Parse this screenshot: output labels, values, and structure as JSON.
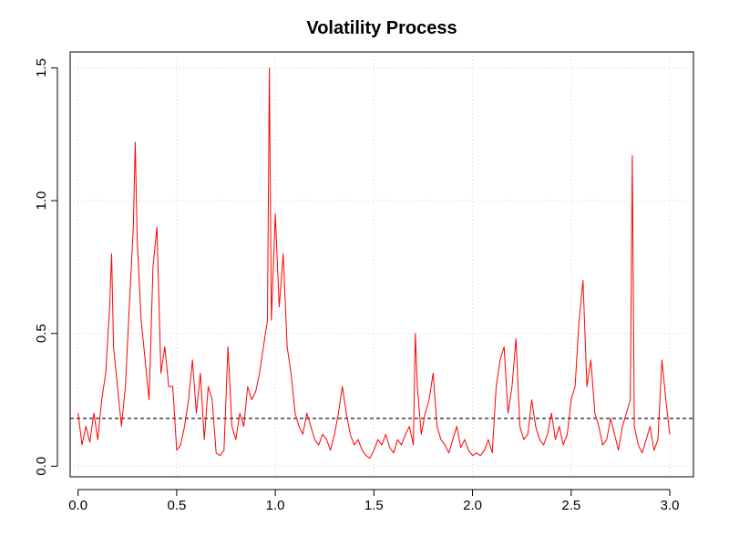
{
  "chart_data": {
    "type": "line",
    "title": "Volatility Process",
    "xlabel": "",
    "ylabel": "",
    "xlim": [
      -0.04,
      3.12
    ],
    "ylim": [
      -0.04,
      1.56
    ],
    "x_ticks": [
      0.0,
      0.5,
      1.0,
      1.5,
      2.0,
      2.5,
      3.0
    ],
    "x_tick_labels": [
      "0.0",
      "0.5",
      "1.0",
      "1.5",
      "2.0",
      "2.5",
      "3.0"
    ],
    "y_ticks": [
      0.0,
      0.5,
      1.0,
      1.5
    ],
    "y_tick_labels": [
      "0.0",
      "0.5",
      "1.0",
      "1.5"
    ],
    "grid": true,
    "series": [
      {
        "color": "#ff0000",
        "x": [
          0.0,
          0.02,
          0.04,
          0.06,
          0.08,
          0.1,
          0.12,
          0.14,
          0.16,
          0.17,
          0.18,
          0.2,
          0.22,
          0.24,
          0.26,
          0.28,
          0.29,
          0.3,
          0.32,
          0.34,
          0.36,
          0.38,
          0.4,
          0.42,
          0.44,
          0.46,
          0.48,
          0.5,
          0.52,
          0.54,
          0.56,
          0.58,
          0.6,
          0.62,
          0.64,
          0.66,
          0.68,
          0.7,
          0.72,
          0.74,
          0.76,
          0.78,
          0.8,
          0.82,
          0.84,
          0.86,
          0.88,
          0.9,
          0.92,
          0.94,
          0.96,
          0.97,
          0.98,
          1.0,
          1.02,
          1.04,
          1.06,
          1.08,
          1.1,
          1.12,
          1.14,
          1.16,
          1.18,
          1.2,
          1.22,
          1.24,
          1.26,
          1.28,
          1.3,
          1.32,
          1.34,
          1.36,
          1.38,
          1.4,
          1.42,
          1.44,
          1.46,
          1.48,
          1.5,
          1.52,
          1.54,
          1.56,
          1.58,
          1.6,
          1.62,
          1.64,
          1.66,
          1.68,
          1.7,
          1.71,
          1.72,
          1.74,
          1.76,
          1.78,
          1.8,
          1.82,
          1.84,
          1.86,
          1.88,
          1.9,
          1.92,
          1.94,
          1.96,
          1.98,
          2.0,
          2.02,
          2.04,
          2.06,
          2.08,
          2.1,
          2.12,
          2.14,
          2.16,
          2.18,
          2.2,
          2.22,
          2.24,
          2.26,
          2.28,
          2.3,
          2.32,
          2.34,
          2.36,
          2.38,
          2.4,
          2.42,
          2.44,
          2.46,
          2.48,
          2.5,
          2.52,
          2.54,
          2.56,
          2.58,
          2.6,
          2.62,
          2.64,
          2.66,
          2.68,
          2.7,
          2.72,
          2.74,
          2.76,
          2.78,
          2.8,
          2.81,
          2.82,
          2.84,
          2.86,
          2.88,
          2.9,
          2.92,
          2.94,
          2.96,
          2.98,
          3.0
        ],
        "y": [
          0.2,
          0.08,
          0.15,
          0.09,
          0.2,
          0.1,
          0.25,
          0.35,
          0.6,
          0.8,
          0.45,
          0.3,
          0.15,
          0.3,
          0.6,
          0.9,
          1.22,
          0.85,
          0.55,
          0.4,
          0.25,
          0.75,
          0.9,
          0.35,
          0.45,
          0.3,
          0.3,
          0.06,
          0.08,
          0.15,
          0.25,
          0.4,
          0.2,
          0.35,
          0.1,
          0.3,
          0.25,
          0.05,
          0.04,
          0.06,
          0.45,
          0.15,
          0.1,
          0.2,
          0.15,
          0.3,
          0.25,
          0.28,
          0.35,
          0.45,
          0.55,
          1.5,
          0.55,
          0.95,
          0.6,
          0.8,
          0.45,
          0.35,
          0.2,
          0.15,
          0.12,
          0.2,
          0.15,
          0.1,
          0.08,
          0.12,
          0.1,
          0.06,
          0.12,
          0.2,
          0.3,
          0.2,
          0.12,
          0.08,
          0.1,
          0.06,
          0.04,
          0.03,
          0.06,
          0.1,
          0.08,
          0.12,
          0.07,
          0.05,
          0.1,
          0.08,
          0.12,
          0.15,
          0.08,
          0.5,
          0.3,
          0.12,
          0.2,
          0.25,
          0.35,
          0.15,
          0.1,
          0.08,
          0.05,
          0.1,
          0.15,
          0.07,
          0.1,
          0.06,
          0.04,
          0.05,
          0.04,
          0.06,
          0.1,
          0.05,
          0.3,
          0.4,
          0.45,
          0.2,
          0.3,
          0.48,
          0.15,
          0.1,
          0.12,
          0.25,
          0.15,
          0.1,
          0.08,
          0.12,
          0.2,
          0.1,
          0.15,
          0.08,
          0.12,
          0.25,
          0.3,
          0.55,
          0.7,
          0.3,
          0.4,
          0.2,
          0.15,
          0.08,
          0.1,
          0.18,
          0.12,
          0.06,
          0.15,
          0.2,
          0.25,
          1.17,
          0.15,
          0.08,
          0.05,
          0.1,
          0.15,
          0.06,
          0.1,
          0.4,
          0.25,
          0.12
        ]
      }
    ],
    "reference_line": {
      "y": 0.18,
      "style": "dashed",
      "color": "#000000"
    }
  }
}
